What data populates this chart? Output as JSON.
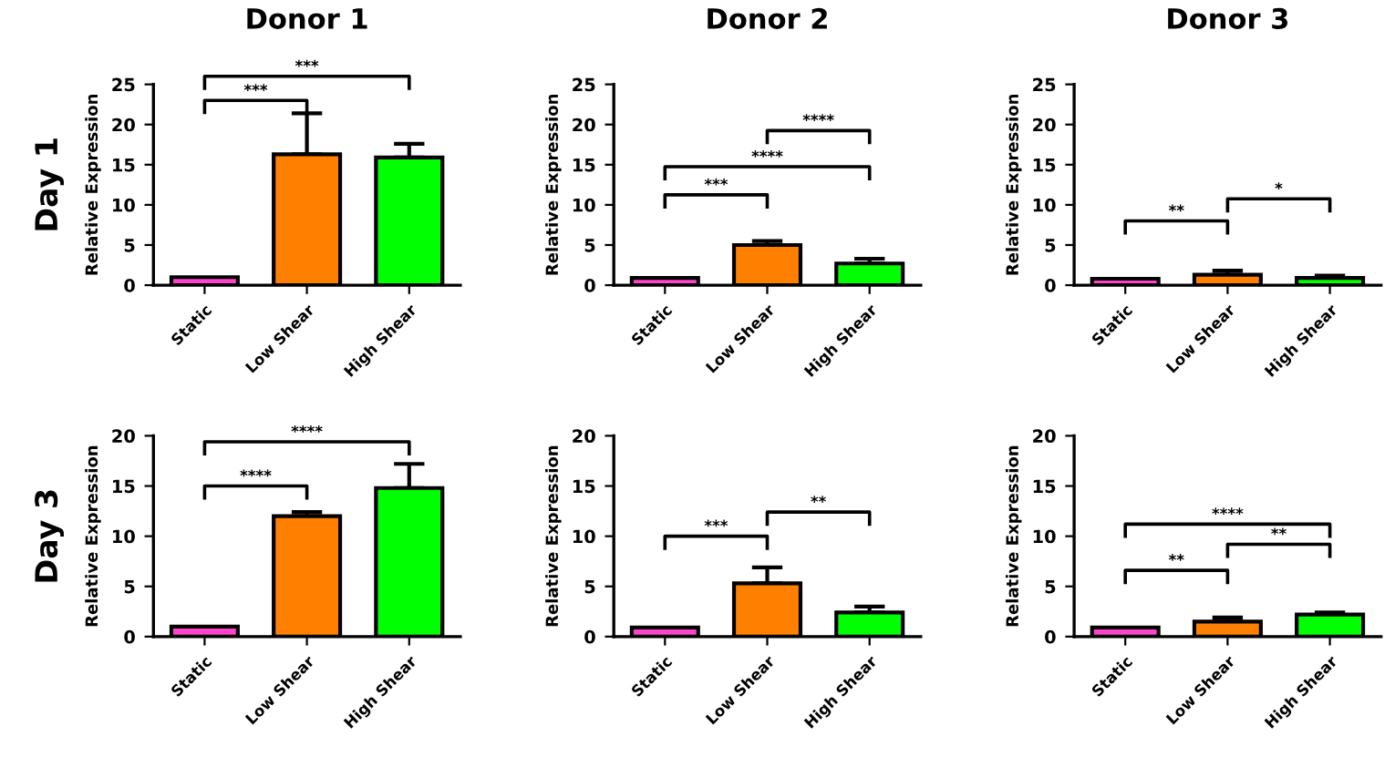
{
  "chart_data": [
    {
      "type": "bar",
      "title": "Donor 1",
      "ylabel": "Relative Expression",
      "categories": [
        "Static",
        "Low Shear",
        "High Shear"
      ],
      "values": [
        1.0,
        16.3,
        15.9
      ],
      "colors": [
        "#ff44cc",
        "#ff8000",
        "#00ff00"
      ],
      "errors": [
        null,
        [
          16.3,
          21.4
        ],
        [
          15.9,
          17.6
        ]
      ],
      "ylim": [
        0,
        25
      ],
      "yticks": [
        0,
        5,
        10,
        15,
        20,
        25
      ],
      "grid": false,
      "legend": false,
      "annotations": [
        "***",
        "***",
        "Day 1"
      ]
    },
    {
      "type": "bar",
      "title": "Donor 2",
      "ylabel": "Relative Expression",
      "categories": [
        "Static",
        "Low Shear",
        "High Shear"
      ],
      "values": [
        0.9,
        5.0,
        2.7
      ],
      "colors": [
        "#ff44cc",
        "#ff8000",
        "#00ff00"
      ],
      "errors": [
        null,
        [
          5.0,
          5.5
        ],
        [
          2.7,
          3.3
        ]
      ],
      "ylim": [
        0,
        25
      ],
      "yticks": [
        0,
        5,
        10,
        15,
        20,
        25
      ],
      "grid": false,
      "legend": false,
      "annotations": [
        "***",
        "****",
        "****"
      ]
    },
    {
      "type": "bar",
      "title": "Donor 3",
      "ylabel": "Relative Expression",
      "categories": [
        "Static",
        "Low Shear",
        "High Shear"
      ],
      "values": [
        0.8,
        1.3,
        0.9
      ],
      "colors": [
        "#ff44cc",
        "#ff8000",
        "#00ff00"
      ],
      "errors": [
        null,
        [
          1.3,
          1.8
        ],
        [
          0.9,
          1.2
        ]
      ],
      "ylim": [
        0,
        25
      ],
      "yticks": [
        0,
        5,
        10,
        15,
        20,
        25
      ],
      "grid": false,
      "legend": false,
      "annotations": [
        "**",
        "*"
      ]
    },
    {
      "type": "bar",
      "ylabel": "Relative Expression",
      "categories": [
        "Static",
        "Low Shear",
        "High Shear"
      ],
      "values": [
        1.0,
        12.0,
        14.8
      ],
      "colors": [
        "#ff44cc",
        "#ff8000",
        "#00ff00"
      ],
      "errors": [
        null,
        [
          12.0,
          12.4
        ],
        [
          14.8,
          17.2
        ]
      ],
      "ylim": [
        0,
        20
      ],
      "yticks": [
        0,
        5,
        10,
        15,
        20
      ],
      "grid": false,
      "legend": false,
      "annotations": [
        "****",
        "****",
        "Day 3"
      ]
    },
    {
      "type": "bar",
      "ylabel": "Relative Expression",
      "categories": [
        "Static",
        "Low Shear",
        "High Shear"
      ],
      "values": [
        0.9,
        5.3,
        2.4
      ],
      "colors": [
        "#ff44cc",
        "#ff8000",
        "#00ff00"
      ],
      "errors": [
        null,
        [
          5.3,
          6.9
        ],
        [
          2.4,
          3.0
        ]
      ],
      "ylim": [
        0,
        20
      ],
      "yticks": [
        0,
        5,
        10,
        15,
        20
      ],
      "grid": false,
      "legend": false,
      "annotations": [
        "***",
        "**"
      ]
    },
    {
      "type": "bar",
      "ylabel": "Relative Expression",
      "categories": [
        "Static",
        "Low Shear",
        "High Shear"
      ],
      "values": [
        0.9,
        1.5,
        2.2
      ],
      "colors": [
        "#ff44cc",
        "#ff8000",
        "#00ff00"
      ],
      "errors": [
        null,
        [
          1.5,
          1.9
        ],
        [
          2.2,
          2.4
        ]
      ],
      "ylim": [
        0,
        20
      ],
      "yticks": [
        0,
        5,
        10,
        15,
        20
      ],
      "grid": false,
      "legend": false,
      "annotations": [
        "**",
        "**",
        "****"
      ]
    }
  ]
}
